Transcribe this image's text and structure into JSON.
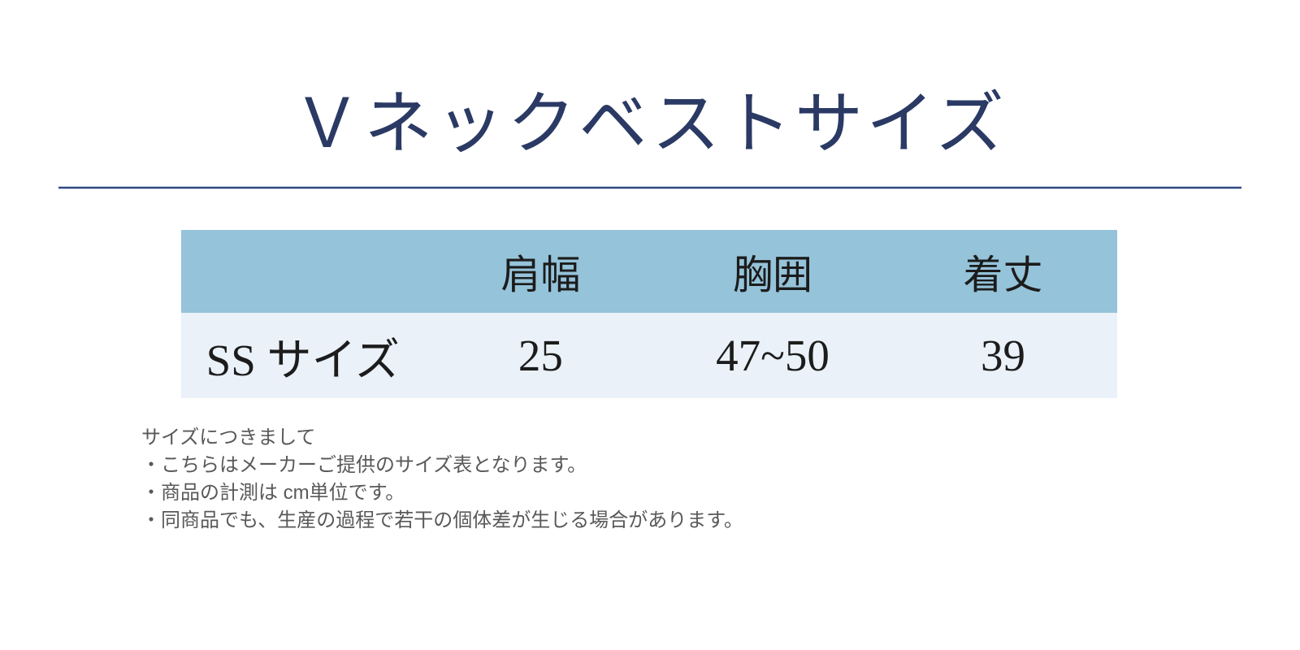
{
  "page": {
    "title": "Ｖネックベストサイズ"
  },
  "colors": {
    "title_color": "#2a3a64",
    "divider_color": "#36497e",
    "header_bg": "#95c3d9",
    "row_bg": "#eaf1f8",
    "table_text": "#1c1c1c",
    "notes_text": "#595959"
  },
  "size_table": {
    "headers": [
      "",
      "肩幅",
      "胸囲",
      "着丈"
    ],
    "rows": [
      {
        "size": "SS サイズ",
        "shoulder": "25",
        "chest": "47~50",
        "length": "39"
      }
    ]
  },
  "notes": {
    "heading": "サイズにつきまして",
    "items": [
      "・こちらはメーカーご提供のサイズ表となります。",
      "・商品の計測は cm単位です。",
      "・同商品でも、生産の過程で若干の個体差が生じる場合があります。"
    ]
  }
}
